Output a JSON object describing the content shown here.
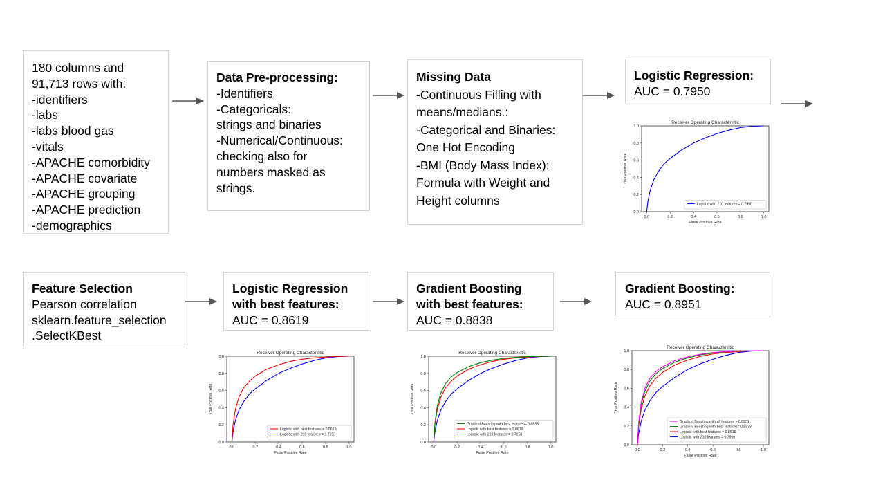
{
  "boxes": {
    "dataset": {
      "lines": [
        "180 columns and",
        "91,713 rows with:",
        "-identifiers",
        "-labs",
        "-labs blood gas",
        "-vitals",
        "-APACHE comorbidity",
        "-APACHE covariate",
        "-APACHE grouping",
        "-APACHE prediction",
        "-demographics"
      ]
    },
    "preprocessing": {
      "title": "Data Pre-processing:",
      "lines": [
        "-Identifiers",
        "-Categoricals:",
        "strings and binaries",
        "-Numerical/Continuous:",
        "checking also for",
        "numbers masked as",
        "strings."
      ]
    },
    "missing": {
      "title": "Missing Data",
      "lines": [
        "-Continuous Filling with",
        "means/medians.:",
        "-Categorical and Binaries:",
        "One Hot Encoding",
        "-BMI (Body Mass Index):",
        "Formula with Weight and",
        "Height columns"
      ]
    },
    "logreg": {
      "title": "Logistic Regression:",
      "lines": [
        "AUC = 0.7950"
      ]
    },
    "featsel": {
      "title": "Feature Selection",
      "lines": [
        "Pearson correlation",
        "sklearn.feature_selection",
        ".SelectKBest"
      ]
    },
    "logreg_best": {
      "title_lines": [
        "Logistic Regression",
        "with best features:"
      ],
      "lines": [
        "AUC = 0.8619"
      ]
    },
    "gb_best": {
      "title_lines": [
        "Gradient Boosting",
        "with best features:"
      ],
      "lines": [
        "AUC = 0.8838"
      ]
    },
    "gb_all": {
      "title": "Gradient Boosting:",
      "lines": [
        "AUC = 0.8951"
      ]
    }
  },
  "chart_data": [
    {
      "type": "line",
      "title": "Receiver Operating Characteristic",
      "xlabel": "False Positive Rate",
      "ylabel": "True Positive Rate",
      "xlim": [
        0,
        1
      ],
      "ylim": [
        0,
        1
      ],
      "xticks": [
        "0.0",
        "0.2",
        "0.4",
        "0.6",
        "0.8",
        "1.0"
      ],
      "yticks": [
        "0.0",
        "0.2",
        "0.4",
        "0.6",
        "0.8",
        "1.0"
      ],
      "legend": "lower-right",
      "series": [
        {
          "name": "Logistic with 210 features = 0.7950",
          "color": "#0000ff",
          "x": [
            0,
            0.01,
            0.03,
            0.06,
            0.1,
            0.15,
            0.2,
            0.3,
            0.4,
            0.5,
            0.6,
            0.7,
            0.8,
            0.9,
            1.0
          ],
          "y": [
            0,
            0.12,
            0.25,
            0.37,
            0.47,
            0.56,
            0.62,
            0.72,
            0.8,
            0.86,
            0.91,
            0.95,
            0.98,
            0.995,
            1.0
          ]
        }
      ]
    },
    {
      "type": "line",
      "title": "Receiver Operating Characteristic",
      "xlabel": "False Positive Rate",
      "ylabel": "True Positive Rate",
      "xlim": [
        0,
        1
      ],
      "ylim": [
        0,
        1
      ],
      "xticks": [
        "0.0",
        "0.2",
        "0.4",
        "0.6",
        "0.8",
        "1.0"
      ],
      "yticks": [
        "0.0",
        "0.2",
        "0.4",
        "0.6",
        "0.8",
        "1.0"
      ],
      "legend": "lower-right",
      "series": [
        {
          "name": "Logistic with best features = 0.8619",
          "color": "#ff0000",
          "x": [
            0,
            0.01,
            0.03,
            0.06,
            0.1,
            0.15,
            0.2,
            0.3,
            0.4,
            0.5,
            0.6,
            0.7,
            0.8,
            0.9,
            1.0
          ],
          "y": [
            0,
            0.2,
            0.38,
            0.52,
            0.63,
            0.71,
            0.77,
            0.85,
            0.9,
            0.94,
            0.965,
            0.98,
            0.99,
            0.998,
            1.0
          ]
        },
        {
          "name": "Logistic with 210 features = 0.7950",
          "color": "#0000ff",
          "x": [
            0,
            0.01,
            0.03,
            0.06,
            0.1,
            0.15,
            0.2,
            0.3,
            0.4,
            0.5,
            0.6,
            0.7,
            0.8,
            0.9,
            1.0
          ],
          "y": [
            0,
            0.12,
            0.25,
            0.37,
            0.47,
            0.56,
            0.62,
            0.72,
            0.8,
            0.86,
            0.91,
            0.95,
            0.98,
            0.995,
            1.0
          ]
        }
      ]
    },
    {
      "type": "line",
      "title": "Receiver Operating Characteristic",
      "xlabel": "False Positive Rate",
      "ylabel": "True Positive Rate",
      "xlim": [
        0,
        1
      ],
      "ylim": [
        0,
        1
      ],
      "xticks": [
        "0.0",
        "0.2",
        "0.4",
        "0.6",
        "0.8",
        "1.0"
      ],
      "yticks": [
        "0.0",
        "0.2",
        "0.4",
        "0.6",
        "0.8",
        "1.0"
      ],
      "legend": "lower-right",
      "series": [
        {
          "name": "Gradient Boosting with best features= 0.8838",
          "color": "#008000",
          "x": [
            0,
            0.01,
            0.03,
            0.06,
            0.1,
            0.15,
            0.2,
            0.3,
            0.4,
            0.5,
            0.6,
            0.7,
            0.8,
            0.9,
            1.0
          ],
          "y": [
            0,
            0.22,
            0.42,
            0.57,
            0.68,
            0.76,
            0.81,
            0.88,
            0.925,
            0.955,
            0.975,
            0.988,
            0.995,
            0.999,
            1.0
          ]
        },
        {
          "name": "Logistic with best features = 0.8619",
          "color": "#ff0000",
          "x": [
            0,
            0.01,
            0.03,
            0.06,
            0.1,
            0.15,
            0.2,
            0.3,
            0.4,
            0.5,
            0.6,
            0.7,
            0.8,
            0.9,
            1.0
          ],
          "y": [
            0,
            0.2,
            0.38,
            0.52,
            0.63,
            0.71,
            0.77,
            0.85,
            0.9,
            0.94,
            0.965,
            0.98,
            0.99,
            0.998,
            1.0
          ]
        },
        {
          "name": "Logistic with 210 features = 0.7950",
          "color": "#0000ff",
          "x": [
            0,
            0.01,
            0.03,
            0.06,
            0.1,
            0.15,
            0.2,
            0.3,
            0.4,
            0.5,
            0.6,
            0.7,
            0.8,
            0.9,
            1.0
          ],
          "y": [
            0,
            0.12,
            0.25,
            0.37,
            0.47,
            0.56,
            0.62,
            0.72,
            0.8,
            0.86,
            0.91,
            0.95,
            0.98,
            0.995,
            1.0
          ]
        }
      ]
    },
    {
      "type": "line",
      "title": "Receiver Operating Characteristic",
      "xlabel": "False Positive Rate",
      "ylabel": "True Positive Rate",
      "xlim": [
        0,
        1
      ],
      "ylim": [
        0,
        1
      ],
      "xticks": [
        "0.0",
        "0.2",
        "0.4",
        "0.6",
        "0.8",
        "1.0"
      ],
      "yticks": [
        "0.0",
        "0.2",
        "0.4",
        "0.6",
        "0.8",
        "1.0"
      ],
      "legend": "lower-right",
      "series": [
        {
          "name": "Gradient Boosting with all features = 0.8951",
          "color": "#ff00ff",
          "x": [
            0,
            0.01,
            0.03,
            0.06,
            0.1,
            0.15,
            0.2,
            0.3,
            0.4,
            0.5,
            0.6,
            0.7,
            0.8,
            0.9,
            1.0
          ],
          "y": [
            0,
            0.24,
            0.45,
            0.6,
            0.71,
            0.78,
            0.83,
            0.895,
            0.935,
            0.962,
            0.98,
            0.99,
            0.996,
            0.999,
            1.0
          ]
        },
        {
          "name": "Gradient Boosting with best features= 0.8838",
          "color": "#008000",
          "x": [
            0,
            0.01,
            0.03,
            0.06,
            0.1,
            0.15,
            0.2,
            0.3,
            0.4,
            0.5,
            0.6,
            0.7,
            0.8,
            0.9,
            1.0
          ],
          "y": [
            0,
            0.22,
            0.42,
            0.57,
            0.68,
            0.76,
            0.81,
            0.88,
            0.925,
            0.955,
            0.975,
            0.988,
            0.995,
            0.999,
            1.0
          ]
        },
        {
          "name": "Logistic with best features = 0.8619",
          "color": "#ff0000",
          "x": [
            0,
            0.01,
            0.03,
            0.06,
            0.1,
            0.15,
            0.2,
            0.3,
            0.4,
            0.5,
            0.6,
            0.7,
            0.8,
            0.9,
            1.0
          ],
          "y": [
            0,
            0.2,
            0.38,
            0.52,
            0.63,
            0.71,
            0.77,
            0.85,
            0.9,
            0.94,
            0.965,
            0.98,
            0.99,
            0.998,
            1.0
          ]
        },
        {
          "name": "Logistic with 210 features = 0.7950",
          "color": "#0000ff",
          "x": [
            0,
            0.01,
            0.03,
            0.06,
            0.1,
            0.15,
            0.2,
            0.3,
            0.4,
            0.5,
            0.6,
            0.7,
            0.8,
            0.9,
            1.0
          ],
          "y": [
            0,
            0.12,
            0.25,
            0.37,
            0.47,
            0.56,
            0.62,
            0.72,
            0.8,
            0.86,
            0.91,
            0.95,
            0.98,
            0.995,
            1.0
          ]
        }
      ]
    }
  ]
}
